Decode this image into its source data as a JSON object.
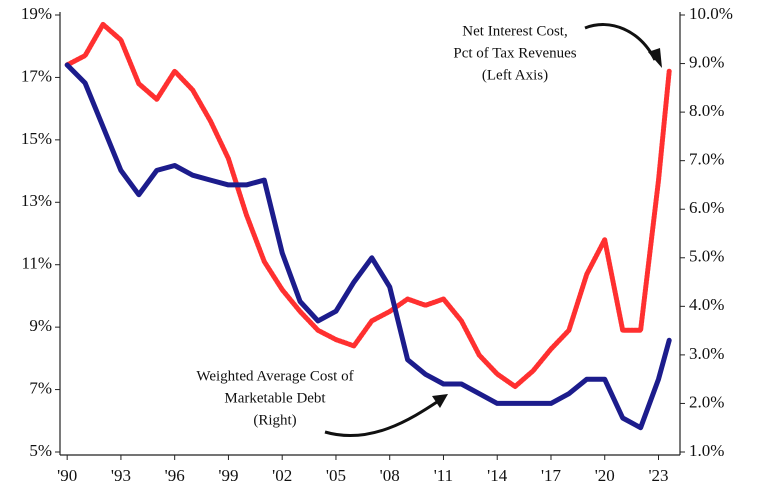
{
  "chart_data": {
    "type": "line",
    "x": [
      1990,
      1991,
      1992,
      1993,
      1994,
      1995,
      1996,
      1997,
      1998,
      1999,
      2000,
      2001,
      2002,
      2003,
      2004,
      2005,
      2006,
      2007,
      2008,
      2009,
      2010,
      2011,
      2012,
      2013,
      2014,
      2015,
      2016,
      2017,
      2018,
      2019,
      2020,
      2021,
      2022,
      2023,
      2023.6
    ],
    "xlim": [
      1989.6,
      2024.2
    ],
    "xticks": [
      {
        "value": 1990,
        "label": "'90"
      },
      {
        "value": 1993,
        "label": "'93"
      },
      {
        "value": 1996,
        "label": "'96"
      },
      {
        "value": 1999,
        "label": "'99"
      },
      {
        "value": 2002,
        "label": "'02"
      },
      {
        "value": 2005,
        "label": "'05"
      },
      {
        "value": 2008,
        "label": "'08"
      },
      {
        "value": 2011,
        "label": "'11"
      },
      {
        "value": 2014,
        "label": "'14"
      },
      {
        "value": 2017,
        "label": "'17"
      },
      {
        "value": 2020,
        "label": "'20"
      },
      {
        "value": 2023,
        "label": "'23"
      }
    ],
    "ylim": [
      5,
      19
    ],
    "yticks": [
      {
        "value": 5,
        "label": "5%"
      },
      {
        "value": 7,
        "label": "7%"
      },
      {
        "value": 9,
        "label": "9%"
      },
      {
        "value": 11,
        "label": "11%"
      },
      {
        "value": 13,
        "label": "13%"
      },
      {
        "value": 15,
        "label": "15%"
      },
      {
        "value": 17,
        "label": "17%"
      },
      {
        "value": 19,
        "label": "19%"
      }
    ],
    "y2lim": [
      1,
      10
    ],
    "y2ticks": [
      {
        "value": 1,
        "label": "1.0%"
      },
      {
        "value": 2,
        "label": "2.0%"
      },
      {
        "value": 3,
        "label": "3.0%"
      },
      {
        "value": 4,
        "label": "4.0%"
      },
      {
        "value": 5,
        "label": "5.0%"
      },
      {
        "value": 6,
        "label": "6.0%"
      },
      {
        "value": 7,
        "label": "7.0%"
      },
      {
        "value": 8,
        "label": "8.0%"
      },
      {
        "value": 9,
        "label": "9.0%"
      },
      {
        "value": 10,
        "label": "10.0%"
      }
    ],
    "series": [
      {
        "color": "#ff3030",
        "axis": "y",
        "values": [
          17.4,
          17.7,
          18.7,
          18.2,
          16.8,
          16.3,
          17.2,
          16.6,
          15.6,
          14.4,
          12.6,
          11.1,
          10.2,
          9.5,
          8.9,
          8.6,
          8.4,
          9.2,
          9.5,
          9.9,
          9.7,
          9.9,
          9.2,
          8.1,
          7.5,
          7.1,
          7.6,
          8.3,
          8.9,
          10.7,
          11.8,
          8.9,
          8.9,
          13.7,
          17.2
        ]
      },
      {
        "color": "#1c1c8c",
        "axis": "y2",
        "values": [
          8.97,
          8.6,
          7.7,
          6.8,
          6.3,
          6.8,
          6.9,
          6.7,
          6.6,
          6.5,
          6.5,
          6.6,
          5.1,
          4.1,
          3.7,
          3.9,
          4.5,
          5.0,
          4.4,
          2.9,
          2.6,
          2.4,
          2.4,
          2.2,
          2.0,
          2.0,
          2.0,
          2.0,
          2.2,
          2.5,
          2.5,
          1.7,
          1.5,
          2.5,
          3.3
        ]
      }
    ],
    "annotations": [
      {
        "lines": [
          "Net Interest Cost,",
          "Pct of Tax Revenues",
          "(Left Axis)"
        ]
      },
      {
        "lines": [
          "Weighted Average Cost of",
          "Marketable Debt",
          "(Right)"
        ]
      }
    ]
  }
}
